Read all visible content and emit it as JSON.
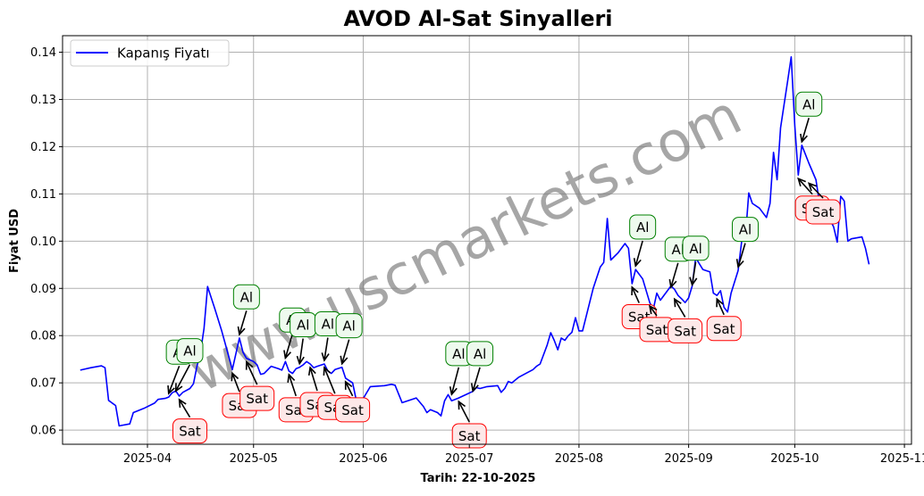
{
  "chart_data": {
    "type": "line",
    "title": "AVOD Al-Sat Sinyalleri",
    "xlabel": "Tarih: 22-10-2025",
    "ylabel": "Fiyat USD",
    "watermark": "www.uscmarkets.com",
    "legend": {
      "placement": "top-left",
      "entries": [
        "Kapanış Fiyatı"
      ]
    },
    "grid": true,
    "colors": {
      "line": "#0000ff",
      "buy_border": "#008000",
      "buy_fill": "#eefaee",
      "sell_border": "#ff0000",
      "sell_fill": "#fde8e8",
      "watermark": "#808080"
    },
    "xlim": [
      "2025-03-08",
      "2025-11-03"
    ],
    "ylim": [
      0.057,
      0.1435
    ],
    "x_ticks": [
      "2025-04-01",
      "2025-05-01",
      "2025-06-01",
      "2025-07-01",
      "2025-08-01",
      "2025-09-01",
      "2025-10-01",
      "2025-11-01"
    ],
    "x_tick_labels": [
      "2025-04",
      "2025-05",
      "2025-06",
      "2025-07",
      "2025-08",
      "2025-09",
      "2025-10",
      "2025-11"
    ],
    "y_ticks": [
      0.06,
      0.07,
      0.08,
      0.09,
      0.1,
      0.11,
      0.12,
      0.13,
      0.14
    ],
    "y_tick_labels": [
      "0.06",
      "0.07",
      "0.08",
      "0.09",
      "0.10",
      "0.11",
      "0.12",
      "0.13",
      "0.14"
    ],
    "series": [
      {
        "name": "Kapanış Fiyatı",
        "points": [
          [
            "2025-03-13",
            0.0727
          ],
          [
            "2025-03-16",
            0.0732
          ],
          [
            "2025-03-19",
            0.0736
          ],
          [
            "2025-03-20",
            0.0732
          ],
          [
            "2025-03-21",
            0.0663
          ],
          [
            "2025-03-23",
            0.0652
          ],
          [
            "2025-03-24",
            0.0609
          ],
          [
            "2025-03-27",
            0.0613
          ],
          [
            "2025-03-28",
            0.0637
          ],
          [
            "2025-03-31",
            0.0646
          ],
          [
            "2025-04-03",
            0.0657
          ],
          [
            "2025-04-04",
            0.0665
          ],
          [
            "2025-04-06",
            0.0667
          ],
          [
            "2025-04-07",
            0.067
          ],
          [
            "2025-04-08",
            0.0679
          ],
          [
            "2025-04-09",
            0.0683
          ],
          [
            "2025-04-10",
            0.0672
          ],
          [
            "2025-04-11",
            0.068
          ],
          [
            "2025-04-13",
            0.0688
          ],
          [
            "2025-04-14",
            0.0698
          ],
          [
            "2025-04-15",
            0.0735
          ],
          [
            "2025-04-16",
            0.0765
          ],
          [
            "2025-04-17",
            0.0815
          ],
          [
            "2025-04-18",
            0.0904
          ],
          [
            "2025-04-20",
            0.0858
          ],
          [
            "2025-04-22",
            0.081
          ],
          [
            "2025-04-25",
            0.0728
          ],
          [
            "2025-04-27",
            0.0795
          ],
          [
            "2025-04-28",
            0.0765
          ],
          [
            "2025-04-29",
            0.0752
          ],
          [
            "2025-05-01",
            0.0745
          ],
          [
            "2025-05-02",
            0.0738
          ],
          [
            "2025-05-03",
            0.0718
          ],
          [
            "2025-05-04",
            0.072
          ],
          [
            "2025-05-06",
            0.0735
          ],
          [
            "2025-05-08",
            0.073
          ],
          [
            "2025-05-09",
            0.0727
          ],
          [
            "2025-05-10",
            0.0745
          ],
          [
            "2025-05-11",
            0.0725
          ],
          [
            "2025-05-12",
            0.072
          ],
          [
            "2025-05-13",
            0.073
          ],
          [
            "2025-05-14",
            0.0733
          ],
          [
            "2025-05-15",
            0.0738
          ],
          [
            "2025-05-16",
            0.0745
          ],
          [
            "2025-05-17",
            0.074
          ],
          [
            "2025-05-18",
            0.0732
          ],
          [
            "2025-05-19",
            0.0735
          ],
          [
            "2025-05-21",
            0.074
          ],
          [
            "2025-05-22",
            0.0725
          ],
          [
            "2025-05-23",
            0.072
          ],
          [
            "2025-05-24",
            0.0728
          ],
          [
            "2025-05-26",
            0.0733
          ],
          [
            "2025-05-27",
            0.071
          ],
          [
            "2025-05-29",
            0.07
          ],
          [
            "2025-05-30",
            0.0665
          ],
          [
            "2025-05-31",
            0.066
          ],
          [
            "2025-06-01",
            0.0667
          ],
          [
            "2025-06-03",
            0.0692
          ],
          [
            "2025-06-07",
            0.0694
          ],
          [
            "2025-06-09",
            0.0697
          ],
          [
            "2025-06-10",
            0.0695
          ],
          [
            "2025-06-12",
            0.0658
          ],
          [
            "2025-06-14",
            0.0663
          ],
          [
            "2025-06-16",
            0.0668
          ],
          [
            "2025-06-18",
            0.065
          ],
          [
            "2025-06-19",
            0.0637
          ],
          [
            "2025-06-20",
            0.0643
          ],
          [
            "2025-06-22",
            0.0637
          ],
          [
            "2025-06-23",
            0.063
          ],
          [
            "2025-06-24",
            0.0662
          ],
          [
            "2025-06-25",
            0.0675
          ],
          [
            "2025-06-26",
            0.0662
          ],
          [
            "2025-06-28",
            0.0668
          ],
          [
            "2025-06-30",
            0.0675
          ],
          [
            "2025-07-02",
            0.0682
          ],
          [
            "2025-07-03",
            0.069
          ],
          [
            "2025-07-04",
            0.0688
          ],
          [
            "2025-07-06",
            0.0692
          ],
          [
            "2025-07-09",
            0.0694
          ],
          [
            "2025-07-10",
            0.068
          ],
          [
            "2025-07-11",
            0.0688
          ],
          [
            "2025-07-12",
            0.0703
          ],
          [
            "2025-07-13",
            0.07
          ],
          [
            "2025-07-15",
            0.0712
          ],
          [
            "2025-07-17",
            0.072
          ],
          [
            "2025-07-19",
            0.0728
          ],
          [
            "2025-07-20",
            0.0735
          ],
          [
            "2025-07-21",
            0.074
          ],
          [
            "2025-07-23",
            0.078
          ],
          [
            "2025-07-24",
            0.0806
          ],
          [
            "2025-07-25",
            0.079
          ],
          [
            "2025-07-26",
            0.077
          ],
          [
            "2025-07-27",
            0.0795
          ],
          [
            "2025-07-28",
            0.079
          ],
          [
            "2025-07-29",
            0.08
          ],
          [
            "2025-07-30",
            0.0807
          ],
          [
            "2025-07-31",
            0.0838
          ],
          [
            "2025-08-01",
            0.081
          ],
          [
            "2025-08-02",
            0.081
          ],
          [
            "2025-08-05",
            0.09
          ],
          [
            "2025-08-07",
            0.0945
          ],
          [
            "2025-08-08",
            0.0955
          ],
          [
            "2025-08-09",
            0.1048
          ],
          [
            "2025-08-10",
            0.096
          ],
          [
            "2025-08-12",
            0.0975
          ],
          [
            "2025-08-14",
            0.0995
          ],
          [
            "2025-08-15",
            0.0985
          ],
          [
            "2025-08-16",
            0.091
          ],
          [
            "2025-08-17",
            0.094
          ],
          [
            "2025-08-19",
            0.092
          ],
          [
            "2025-08-21",
            0.087
          ],
          [
            "2025-08-22",
            0.0855
          ],
          [
            "2025-08-23",
            0.089
          ],
          [
            "2025-08-24",
            0.0875
          ],
          [
            "2025-08-27",
            0.0905
          ],
          [
            "2025-08-28",
            0.0898
          ],
          [
            "2025-08-29",
            0.0885
          ],
          [
            "2025-08-30",
            0.0878
          ],
          [
            "2025-08-31",
            0.087
          ],
          [
            "2025-09-01",
            0.088
          ],
          [
            "2025-09-02",
            0.0905
          ],
          [
            "2025-09-03",
            0.0965
          ],
          [
            "2025-09-05",
            0.094
          ],
          [
            "2025-09-07",
            0.0935
          ],
          [
            "2025-09-08",
            0.089
          ],
          [
            "2025-09-09",
            0.0885
          ],
          [
            "2025-09-10",
            0.0895
          ],
          [
            "2025-09-11",
            0.086
          ],
          [
            "2025-09-12",
            0.085
          ],
          [
            "2025-09-13",
            0.089
          ],
          [
            "2025-09-15",
            0.0938
          ],
          [
            "2025-09-16",
            0.1
          ],
          [
            "2025-09-17",
            0.1005
          ],
          [
            "2025-09-18",
            0.1102
          ],
          [
            "2025-09-19",
            0.108
          ],
          [
            "2025-09-21",
            0.107
          ],
          [
            "2025-09-23",
            0.105
          ],
          [
            "2025-09-24",
            0.108
          ],
          [
            "2025-09-25",
            0.1188
          ],
          [
            "2025-09-26",
            0.113
          ],
          [
            "2025-09-27",
            0.124
          ],
          [
            "2025-09-29",
            0.134
          ],
          [
            "2025-09-30",
            0.139
          ],
          [
            "2025-10-01",
            0.1245
          ],
          [
            "2025-10-02",
            0.114
          ],
          [
            "2025-10-03",
            0.1203
          ],
          [
            "2025-10-05",
            0.1165
          ],
          [
            "2025-10-07",
            0.113
          ],
          [
            "2025-10-08",
            0.108
          ],
          [
            "2025-10-10",
            0.106
          ],
          [
            "2025-10-12",
            0.103
          ],
          [
            "2025-10-13",
            0.0998
          ],
          [
            "2025-10-14",
            0.1095
          ],
          [
            "2025-10-15",
            0.1085
          ],
          [
            "2025-10-16",
            0.1
          ],
          [
            "2025-10-17",
            0.1005
          ],
          [
            "2025-10-20",
            0.1009
          ],
          [
            "2025-10-21",
            0.0985
          ],
          [
            "2025-10-22",
            0.0951
          ]
        ]
      }
    ],
    "signals": [
      {
        "type": "buy",
        "label": "Al",
        "date": "2025-04-07",
        "price": 0.067,
        "label_date": "2025-04-10",
        "label_price": 0.0765
      },
      {
        "type": "buy",
        "label": "Al",
        "date": "2025-04-09",
        "price": 0.0675,
        "label_date": "2025-04-13",
        "label_price": 0.0768
      },
      {
        "type": "sell",
        "label": "Sat",
        "date": "2025-04-10",
        "price": 0.0672,
        "label_date": "2025-04-13",
        "label_price": 0.0598
      },
      {
        "type": "buy",
        "label": "Al",
        "date": "2025-04-27",
        "price": 0.0795,
        "label_date": "2025-04-29",
        "label_price": 0.0882
      },
      {
        "type": "sell",
        "label": "Sat",
        "date": "2025-04-25",
        "price": 0.0728,
        "label_date": "2025-04-27",
        "label_price": 0.0652
      },
      {
        "type": "sell",
        "label": "Sat",
        "date": "2025-04-29",
        "price": 0.0752,
        "label_date": "2025-05-02",
        "label_price": 0.0667
      },
      {
        "type": "buy",
        "label": "Al",
        "date": "2025-05-10",
        "price": 0.0745,
        "label_date": "2025-05-12",
        "label_price": 0.0833
      },
      {
        "type": "sell",
        "label": "Sat",
        "date": "2025-05-11",
        "price": 0.0725,
        "label_date": "2025-05-13",
        "label_price": 0.0643
      },
      {
        "type": "buy",
        "label": "Al",
        "date": "2025-05-14",
        "price": 0.0733,
        "label_date": "2025-05-15",
        "label_price": 0.0823
      },
      {
        "type": "sell",
        "label": "Sat",
        "date": "2025-05-17",
        "price": 0.074,
        "label_date": "2025-05-19",
        "label_price": 0.0654
      },
      {
        "type": "buy",
        "label": "Al",
        "date": "2025-05-21",
        "price": 0.074,
        "label_date": "2025-05-22",
        "label_price": 0.0825
      },
      {
        "type": "sell",
        "label": "Sat",
        "date": "2025-05-21",
        "price": 0.074,
        "label_date": "2025-05-24",
        "label_price": 0.0648
      },
      {
        "type": "buy",
        "label": "Al",
        "date": "2025-05-26",
        "price": 0.0733,
        "label_date": "2025-05-28",
        "label_price": 0.0821
      },
      {
        "type": "sell",
        "label": "Sat",
        "date": "2025-05-27",
        "price": 0.071,
        "label_date": "2025-05-29",
        "label_price": 0.0643
      },
      {
        "type": "buy",
        "label": "Al",
        "date": "2025-06-26",
        "price": 0.0668,
        "label_date": "2025-06-28",
        "label_price": 0.0762
      },
      {
        "type": "buy",
        "label": "Al",
        "date": "2025-07-02",
        "price": 0.0675,
        "label_date": "2025-07-04",
        "label_price": 0.0762
      },
      {
        "type": "sell",
        "label": "Sat",
        "date": "2025-06-28",
        "price": 0.0668,
        "label_date": "2025-07-01",
        "label_price": 0.0588
      },
      {
        "type": "buy",
        "label": "Al",
        "date": "2025-08-17",
        "price": 0.094,
        "label_date": "2025-08-19",
        "label_price": 0.103
      },
      {
        "type": "sell",
        "label": "Sat",
        "date": "2025-08-16",
        "price": 0.091,
        "label_date": "2025-08-18",
        "label_price": 0.084
      },
      {
        "type": "sell",
        "label": "Sat",
        "date": "2025-08-21",
        "price": 0.087,
        "label_date": "2025-08-23",
        "label_price": 0.0813
      },
      {
        "type": "buy",
        "label": "Al",
        "date": "2025-08-27",
        "price": 0.0895,
        "label_date": "2025-08-29",
        "label_price": 0.0983
      },
      {
        "type": "sell",
        "label": "Sat",
        "date": "2025-08-28",
        "price": 0.0885,
        "label_date": "2025-08-31",
        "label_price": 0.081
      },
      {
        "type": "buy",
        "label": "Al",
        "date": "2025-09-02",
        "price": 0.09,
        "label_date": "2025-09-03",
        "label_price": 0.0985
      },
      {
        "type": "sell",
        "label": "Sat",
        "date": "2025-09-09",
        "price": 0.0885,
        "label_date": "2025-09-11",
        "label_price": 0.0815
      },
      {
        "type": "buy",
        "label": "Al",
        "date": "2025-09-15",
        "price": 0.0938,
        "label_date": "2025-09-17",
        "label_price": 0.1025
      },
      {
        "type": "buy",
        "label": "Al",
        "date": "2025-10-03",
        "price": 0.1203,
        "label_date": "2025-10-05",
        "label_price": 0.129
      },
      {
        "type": "sell",
        "label": "Sat",
        "date": "2025-10-02",
        "price": 0.114,
        "label_date": "2025-10-06",
        "label_price": 0.107
      },
      {
        "type": "sell",
        "label": "Sat",
        "date": "2025-10-05",
        "price": 0.113,
        "label_date": "2025-10-09",
        "label_price": 0.1062
      }
    ]
  }
}
